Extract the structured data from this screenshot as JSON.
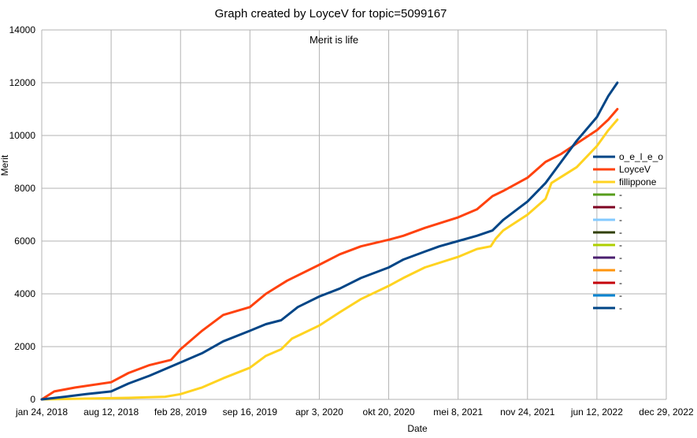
{
  "chart_data": {
    "type": "line",
    "title": "Graph created by LoyceV for topic=5099167",
    "subtitle": "Merit is life",
    "xlabel": "Date",
    "ylabel": "Merit",
    "ylim": [
      0,
      14000
    ],
    "yticks": [
      0,
      2000,
      4000,
      6000,
      8000,
      10000,
      12000,
      14000
    ],
    "xticks": [
      "jan 24, 2018",
      "aug 12, 2018",
      "feb 28, 2019",
      "sep 16, 2019",
      "apr 3, 2020",
      "okt 20, 2020",
      "mei 8, 2021",
      "nov 24, 2021",
      "jun 12, 2022",
      "dec 29, 2022"
    ],
    "grid": true,
    "legend_position": "right",
    "series": [
      {
        "name": "o_e_l_e_o",
        "color": "#004586",
        "x": [
          "2018-01-24",
          "2018-04-01",
          "2018-06-01",
          "2018-08-12",
          "2018-10-01",
          "2018-12-01",
          "2019-02-28",
          "2019-05-01",
          "2019-07-01",
          "2019-09-16",
          "2019-11-01",
          "2019-12-15",
          "2020-02-01",
          "2020-04-03",
          "2020-06-01",
          "2020-08-01",
          "2020-10-20",
          "2020-12-01",
          "2021-02-01",
          "2021-03-15",
          "2021-05-08",
          "2021-07-01",
          "2021-08-15",
          "2021-09-15",
          "2021-11-24",
          "2022-01-15",
          "2022-03-01",
          "2022-04-15",
          "2022-06-12",
          "2022-07-15",
          "2022-08-10"
        ],
        "values": [
          0,
          100,
          200,
          300,
          600,
          900,
          1400,
          1750,
          2200,
          2600,
          2850,
          3000,
          3500,
          3900,
          4200,
          4600,
          5000,
          5300,
          5600,
          5800,
          6000,
          6200,
          6400,
          6800,
          7500,
          8200,
          9000,
          9800,
          10700,
          11500,
          12000
        ]
      },
      {
        "name": "LoyceV",
        "color": "#ff420e",
        "x": [
          "2018-01-24",
          "2018-03-01",
          "2018-05-01",
          "2018-08-12",
          "2018-10-01",
          "2018-12-01",
          "2019-02-01",
          "2019-02-28",
          "2019-05-01",
          "2019-07-01",
          "2019-09-16",
          "2019-11-01",
          "2020-01-01",
          "2020-04-03",
          "2020-06-01",
          "2020-08-01",
          "2020-10-20",
          "2020-12-01",
          "2021-02-01",
          "2021-05-08",
          "2021-07-01",
          "2021-08-15",
          "2021-09-15",
          "2021-11-24",
          "2022-01-15",
          "2022-03-01",
          "2022-04-15",
          "2022-06-12",
          "2022-07-15",
          "2022-08-10"
        ],
        "values": [
          0,
          300,
          450,
          650,
          1000,
          1300,
          1500,
          1900,
          2600,
          3200,
          3500,
          4000,
          4500,
          5100,
          5500,
          5800,
          6050,
          6200,
          6500,
          6900,
          7200,
          7700,
          7900,
          8400,
          9000,
          9300,
          9700,
          10200,
          10600,
          11000
        ]
      },
      {
        "name": "fillippone",
        "color": "#ffd320",
        "x": [
          "2018-01-24",
          "2018-06-01",
          "2018-10-01",
          "2019-01-15",
          "2019-02-28",
          "2019-05-01",
          "2019-07-01",
          "2019-09-16",
          "2019-11-01",
          "2019-12-15",
          "2020-01-15",
          "2020-04-03",
          "2020-06-01",
          "2020-08-01",
          "2020-10-20",
          "2020-12-01",
          "2021-02-01",
          "2021-05-08",
          "2021-07-01",
          "2021-08-10",
          "2021-08-25",
          "2021-09-15",
          "2021-11-24",
          "2022-01-15",
          "2022-02-01",
          "2022-04-15",
          "2022-06-12",
          "2022-07-15",
          "2022-08-10"
        ],
        "values": [
          0,
          30,
          60,
          100,
          200,
          450,
          800,
          1200,
          1650,
          1900,
          2300,
          2800,
          3300,
          3800,
          4300,
          4600,
          5000,
          5400,
          5700,
          5800,
          6100,
          6400,
          7000,
          7600,
          8200,
          8800,
          9600,
          10200,
          10600
        ]
      },
      {
        "name": "-",
        "color": "#579d1c",
        "x": [],
        "values": []
      },
      {
        "name": "-",
        "color": "#7e0021",
        "x": [],
        "values": []
      },
      {
        "name": "-",
        "color": "#83caff",
        "x": [],
        "values": []
      },
      {
        "name": "-",
        "color": "#314004",
        "x": [],
        "values": []
      },
      {
        "name": "-",
        "color": "#aecf00",
        "x": [],
        "values": []
      },
      {
        "name": "-",
        "color": "#4b1f6f",
        "x": [],
        "values": []
      },
      {
        "name": "-",
        "color": "#ff950e",
        "x": [],
        "values": []
      },
      {
        "name": "-",
        "color": "#c5000b",
        "x": [],
        "values": []
      },
      {
        "name": "-",
        "color": "#0084d1",
        "x": [],
        "values": []
      },
      {
        "name": "-",
        "color": "#004586",
        "x": [],
        "values": []
      }
    ]
  }
}
